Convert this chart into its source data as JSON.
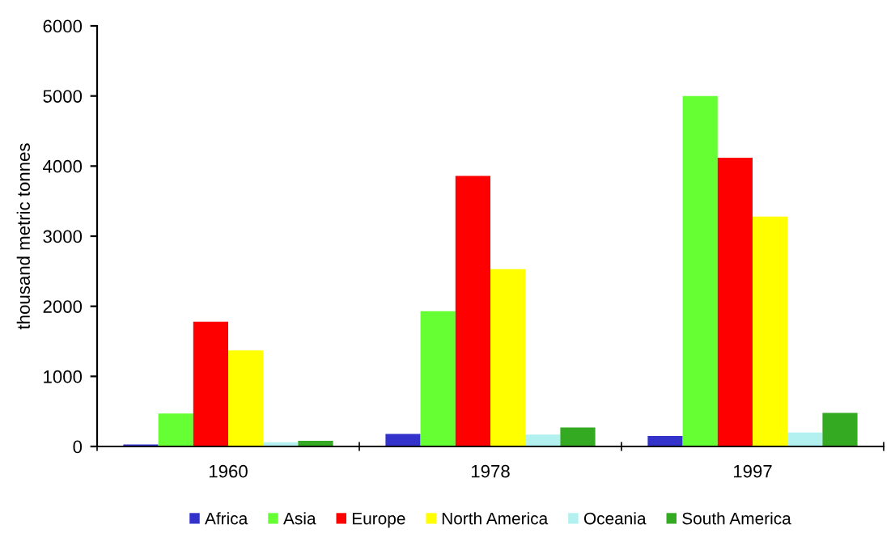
{
  "chart_data": {
    "type": "bar",
    "ylabel": "thousand metric tonnes",
    "categories": [
      "1960",
      "1978",
      "1997"
    ],
    "series": [
      {
        "name": "Africa",
        "color": "#3333cc",
        "values": [
          30,
          180,
          150
        ]
      },
      {
        "name": "Asia",
        "color": "#66ff33",
        "values": [
          470,
          1930,
          5000
        ]
      },
      {
        "name": "Europe",
        "color": "#ff0000",
        "values": [
          1780,
          3860,
          4120
        ]
      },
      {
        "name": "North America",
        "color": "#ffff00",
        "values": [
          1370,
          2530,
          3280
        ]
      },
      {
        "name": "Oceania",
        "color": "#b3f0f0",
        "values": [
          60,
          170,
          200
        ]
      },
      {
        "name": "South America",
        "color": "#33aa22",
        "values": [
          80,
          270,
          480
        ]
      }
    ],
    "ylim": [
      0,
      6000
    ],
    "yticks": [
      0,
      1000,
      2000,
      3000,
      4000,
      5000,
      6000
    ],
    "grid": false,
    "legend": "bottom"
  }
}
